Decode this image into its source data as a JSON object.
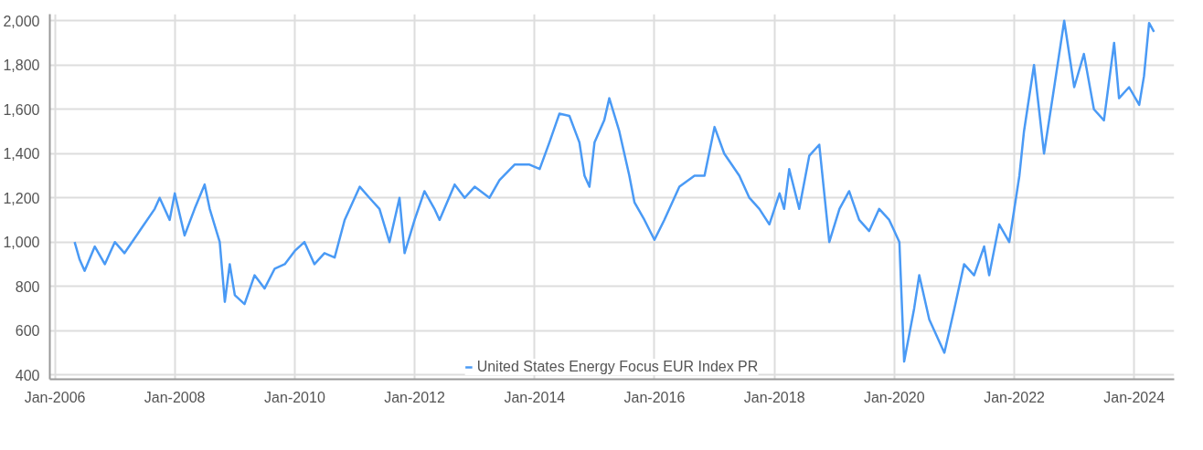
{
  "chart_data": {
    "type": "line",
    "x": [
      "2006-05",
      "2006-06",
      "2006-07",
      "2006-09",
      "2006-11",
      "2007-01",
      "2007-03",
      "2007-06",
      "2007-09",
      "2007-10",
      "2007-12",
      "2008-01",
      "2008-03",
      "2008-05",
      "2008-07",
      "2008-08",
      "2008-10",
      "2008-11",
      "2008-12",
      "2009-01",
      "2009-03",
      "2009-05",
      "2009-07",
      "2009-09",
      "2009-11",
      "2010-01",
      "2010-03",
      "2010-05",
      "2010-07",
      "2010-09",
      "2010-11",
      "2011-02",
      "2011-04",
      "2011-06",
      "2011-08",
      "2011-10",
      "2011-11",
      "2012-01",
      "2012-03",
      "2012-05",
      "2012-06",
      "2012-09",
      "2012-11",
      "2013-01",
      "2013-04",
      "2013-06",
      "2013-09",
      "2013-12",
      "2014-02",
      "2014-04",
      "2014-06",
      "2014-08",
      "2014-10",
      "2014-11",
      "2014-12",
      "2015-01",
      "2015-03",
      "2015-04",
      "2015-06",
      "2015-08",
      "2015-09",
      "2015-11",
      "2016-01",
      "2016-03",
      "2016-06",
      "2016-09",
      "2016-11",
      "2017-01",
      "2017-03",
      "2017-06",
      "2017-08",
      "2017-10",
      "2017-12",
      "2018-02",
      "2018-03",
      "2018-04",
      "2018-06",
      "2018-08",
      "2018-10",
      "2018-12",
      "2019-02",
      "2019-04",
      "2019-06",
      "2019-08",
      "2019-10",
      "2019-12",
      "2020-01",
      "2020-02",
      "2020-03",
      "2020-05",
      "2020-06",
      "2020-08",
      "2020-10",
      "2020-11",
      "2021-01",
      "2021-03",
      "2021-05",
      "2021-07",
      "2021-08",
      "2021-10",
      "2021-12",
      "2022-02",
      "2022-03",
      "2022-05",
      "2022-07",
      "2022-09",
      "2022-11",
      "2023-01",
      "2023-03",
      "2023-05",
      "2023-07",
      "2023-09",
      "2023-10",
      "2023-12",
      "2024-02",
      "2024-03",
      "2024-04",
      "2024-05"
    ],
    "series": [
      {
        "name": "United States Energy Focus EUR Index PR",
        "color": "#4a9af5",
        "values": [
          1000,
          920,
          870,
          980,
          900,
          1000,
          950,
          1050,
          1150,
          1200,
          1100,
          1220,
          1030,
          1150,
          1260,
          1150,
          1000,
          730,
          900,
          760,
          720,
          850,
          790,
          880,
          900,
          960,
          1000,
          900,
          950,
          930,
          1100,
          1250,
          1200,
          1150,
          1000,
          1200,
          950,
          1100,
          1230,
          1150,
          1100,
          1260,
          1200,
          1250,
          1200,
          1280,
          1350,
          1350,
          1330,
          1450,
          1580,
          1570,
          1450,
          1300,
          1250,
          1450,
          1550,
          1650,
          1500,
          1300,
          1180,
          1100,
          1010,
          1100,
          1250,
          1300,
          1300,
          1520,
          1400,
          1300,
          1200,
          1150,
          1080,
          1220,
          1150,
          1330,
          1150,
          1390,
          1440,
          1000,
          1150,
          1230,
          1100,
          1050,
          1150,
          1100,
          1050,
          1000,
          460,
          700,
          850,
          650,
          550,
          500,
          700,
          900,
          850,
          980,
          850,
          1080,
          1000,
          1300,
          1500,
          1800,
          1400,
          1700,
          2000,
          1700,
          1850,
          1600,
          1550,
          1900,
          1650,
          1700,
          1620,
          1750,
          1990,
          1950
        ]
      }
    ],
    "xlim": [
      "2005-12",
      "2024-09"
    ],
    "xticks": [
      {
        "value": "2006-01",
        "label": "Jan-2006"
      },
      {
        "value": "2008-01",
        "label": "Jan-2008"
      },
      {
        "value": "2010-01",
        "label": "Jan-2010"
      },
      {
        "value": "2012-01",
        "label": "Jan-2012"
      },
      {
        "value": "2014-01",
        "label": "Jan-2014"
      },
      {
        "value": "2016-01",
        "label": "Jan-2016"
      },
      {
        "value": "2018-01",
        "label": "Jan-2018"
      },
      {
        "value": "2020-01",
        "label": "Jan-2020"
      },
      {
        "value": "2022-01",
        "label": "Jan-2022"
      },
      {
        "value": "2024-01",
        "label": "Jan-2024"
      }
    ],
    "ylim": [
      380,
      2030
    ],
    "yticks": [
      {
        "value": 400,
        "label": "400"
      },
      {
        "value": 600,
        "label": "600"
      },
      {
        "value": 800,
        "label": "800"
      },
      {
        "value": 1000,
        "label": "1,000"
      },
      {
        "value": 1200,
        "label": "1,200"
      },
      {
        "value": 1400,
        "label": "1,400"
      },
      {
        "value": 1600,
        "label": "1,600"
      },
      {
        "value": 1800,
        "label": "1,800"
      },
      {
        "value": 2000,
        "label": "2,000"
      }
    ],
    "grid": true,
    "legend": "bottom",
    "line_style": "solid",
    "marker": "none"
  }
}
